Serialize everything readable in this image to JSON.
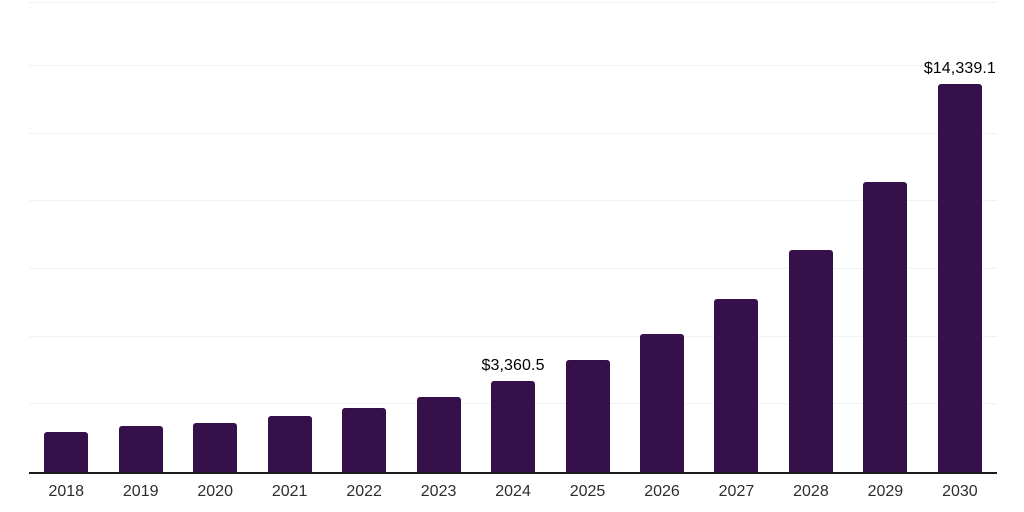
{
  "chart_data": {
    "type": "bar",
    "title": "",
    "categories": [
      "2018",
      "2019",
      "2020",
      "2021",
      "2022",
      "2023",
      "2024",
      "2025",
      "2026",
      "2027",
      "2028",
      "2029",
      "2030"
    ],
    "values": [
      1490,
      1710,
      1820,
      2080,
      2360,
      2790,
      3360.5,
      4130,
      5080,
      6380,
      8200,
      10720,
      14339.1
    ],
    "value_prefix": "$",
    "data_labels": [
      {
        "index": 6,
        "text": "$3,360.5"
      },
      {
        "index": 12,
        "text": "$14,339.1"
      }
    ],
    "xlabel": "",
    "ylabel": "",
    "ylim": [
      0,
      17320
    ],
    "gridline_step": 2500,
    "grid": "horizontal",
    "legend": "none",
    "y_tick_labels_visible": false,
    "colors": {
      "bar": "#36104b",
      "axis_line": "#1b1b1b",
      "gridline": "#f2f2f2",
      "x_tick_label": "#2d2d2d",
      "data_label": "#000000",
      "background": "#ffffff"
    }
  }
}
